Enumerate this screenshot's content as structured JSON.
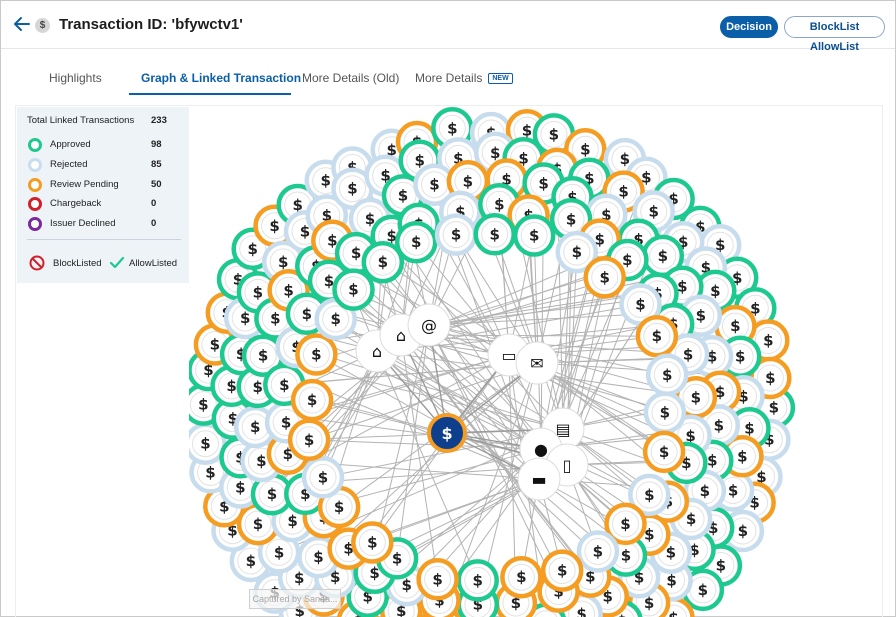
{
  "header": {
    "back_icon": "arrow-left-icon",
    "transaction_icon": "dollar-icon",
    "title": "Transaction ID: 'bfywctv1'",
    "decision_label": "Decision",
    "blocklist_label": "BlockList AllowList"
  },
  "tabs": [
    {
      "label": "Highlights",
      "active": false
    },
    {
      "label": "Graph & Linked Transaction",
      "active": true
    },
    {
      "label": "More Details (Old)",
      "active": false
    },
    {
      "label": "More Details",
      "active": false,
      "badge": "NEW"
    }
  ],
  "legend": {
    "total_label": "Total Linked Transactions",
    "total_value": "233",
    "items": [
      {
        "label": "Approved",
        "value": "98",
        "color": "#1ec98f"
      },
      {
        "label": "Rejected",
        "value": "85",
        "color": "#c7dcec"
      },
      {
        "label": "Review Pending",
        "value": "50",
        "color": "#f59d22"
      },
      {
        "label": "Chargeback",
        "value": "0",
        "color": "#d0212a"
      },
      {
        "label": "Issuer Declined",
        "value": "0",
        "color": "#7a2a9a"
      }
    ],
    "blocklisted_label": "BlockListed",
    "allowlisted_label": "AllowListed"
  },
  "graph": {
    "center_color": "#0e3f8c",
    "center_ring_color": "#f59d22",
    "hub_icons": [
      "home-icon",
      "home-icon",
      "at-icon",
      "credit-card-icon",
      "envelope-icon",
      "id-card-icon",
      "location-pin-icon",
      "devices-icon",
      "truck-icon"
    ]
  },
  "watermark": "Captured by Sanaa..."
}
